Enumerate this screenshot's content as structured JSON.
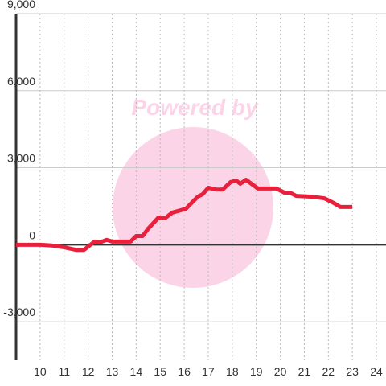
{
  "chart_data": {
    "type": "line",
    "watermark": "Powered by",
    "x": [
      9.0,
      10.0,
      10.5,
      11.0,
      11.5,
      11.83,
      12.27,
      12.5,
      12.77,
      13.0,
      13.77,
      14.0,
      14.27,
      14.5,
      14.93,
      15.2,
      15.5,
      16.07,
      16.33,
      16.57,
      16.77,
      17.0,
      17.33,
      17.6,
      17.93,
      18.17,
      18.33,
      18.57,
      19.07,
      19.83,
      20.17,
      20.4,
      20.67,
      21.27,
      21.83,
      22.23,
      22.5,
      23.0
    ],
    "series": [
      {
        "color": "#e8203c",
        "values": [
          0,
          0,
          -30,
          -100,
          -200,
          -200,
          125,
          95,
          190,
          125,
          125,
          340,
          340,
          625,
          1060,
          1030,
          1250,
          1400,
          1650,
          1875,
          1970,
          2220,
          2150,
          2150,
          2440,
          2500,
          2375,
          2530,
          2190,
          2190,
          2030,
          2030,
          1900,
          1875,
          1810,
          1625,
          1470,
          1470
        ]
      }
    ],
    "xlim": [
      9.0,
      24.4
    ],
    "xticks": [
      10,
      11,
      12,
      13,
      14,
      15,
      16,
      17,
      18,
      19,
      20,
      21,
      22,
      23,
      24
    ],
    "ylim": [
      -4500,
      9000
    ],
    "yticks": [
      {
        "value": -3000,
        "label": "-3,000"
      },
      0,
      {
        "value": 3000,
        "label": "3,000"
      },
      {
        "value": 6000,
        "label": "6,000"
      },
      {
        "value": 9000,
        "label": "9,000"
      }
    ],
    "grid": true
  }
}
